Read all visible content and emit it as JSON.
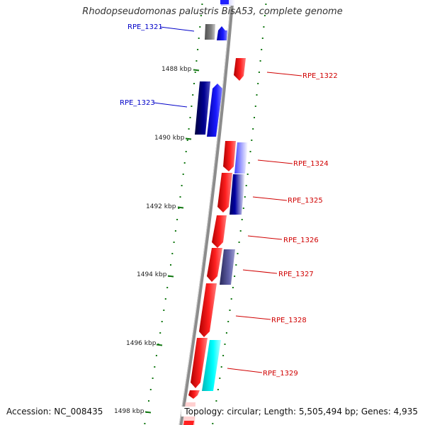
{
  "title": "Rhodopseudomonas palustris BisA53, complete genome",
  "footer": {
    "accession": "Accession: NC_008435",
    "topology": "Topology: circular; Length: 5,505,494 bp; Genes: 4,935"
  },
  "colors": {
    "backbone": "#8c8c8c",
    "ticks": "#117711",
    "label_blue": "#0000c8",
    "label_red": "#d00000"
  },
  "scale_labels": [
    "1488 kbp",
    "1490 kbp",
    "1492 kbp",
    "1494 kbp",
    "1496 kbp",
    "1498 kbp"
  ],
  "genes": [
    {
      "id": "RPE_1321",
      "strand": "minus",
      "color": "#0000ff"
    },
    {
      "id": "RPE_1322",
      "strand": "plus",
      "color": "#ff0000"
    },
    {
      "id": "RPE_1323",
      "strand": "minus",
      "color": "#0000ff"
    },
    {
      "id": "RPE_1324",
      "strand": "plus",
      "color": "#ff0000"
    },
    {
      "id": "RPE_1325",
      "strand": "plus",
      "color": "#ff0000"
    },
    {
      "id": "RPE_1326",
      "strand": "plus",
      "color": "#ff0000"
    },
    {
      "id": "RPE_1327",
      "strand": "plus",
      "color": "#ff0000"
    },
    {
      "id": "RPE_1328",
      "strand": "plus",
      "color": "#ff0000"
    },
    {
      "id": "RPE_1329",
      "strand": "plus",
      "color": "#ff0000"
    }
  ]
}
